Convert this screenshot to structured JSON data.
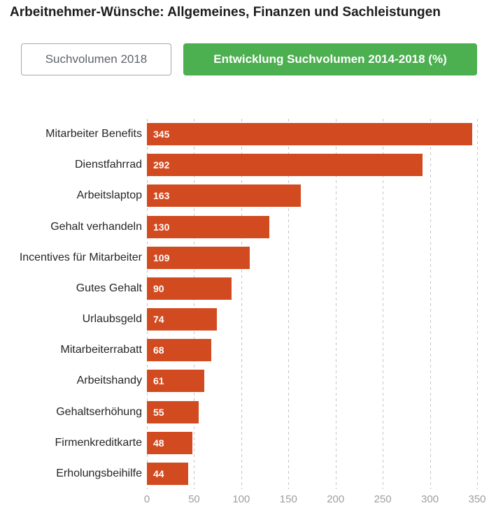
{
  "header": {
    "title": "Arbeitnehmer-Wünsche: Allgemeines, Finanzen und Sachleistungen"
  },
  "toolbar": {
    "volume_button_label": "Suchvolumen 2018",
    "growth_button_label": "Entwicklung Suchvolumen 2014-2018 (%)"
  },
  "colors": {
    "bar": "#d24b20",
    "active_button_bg": "#4caf50",
    "active_button_text": "#ffffff",
    "inactive_button_border": "#a6a6a6",
    "inactive_button_text": "#5f6368",
    "grid": "#c6c6c6",
    "axis_label": "#9e9e9e",
    "category_label": "#262626",
    "value_label": "#ffffff"
  },
  "chart_data": {
    "type": "bar",
    "orientation": "horizontal",
    "title": "Arbeitnehmer-Wünsche: Allgemeines, Finanzen und Sachleistungen",
    "categories": [
      "Mitarbeiter Benefits",
      "Dienstfahrrad",
      "Arbeitslaptop",
      "Gehalt verhandeln",
      "Incentives für Mitarbeiter",
      "Gutes Gehalt",
      "Urlaubsgeld",
      "Mitarbeiterrabatt",
      "Arbeitshandy",
      "Gehaltserhöhung",
      "Firmenkreditkarte",
      "Erholungsbeihilfe"
    ],
    "values": [
      345,
      292,
      163,
      130,
      109,
      90,
      74,
      68,
      61,
      55,
      48,
      44
    ],
    "xlabel": "",
    "ylabel": "",
    "xlim": [
      0,
      350
    ],
    "xticks": [
      0,
      50,
      100,
      150,
      200,
      250,
      300,
      350
    ],
    "grid": "dashed-vertical",
    "value_labels": "inside-start",
    "legend": "none"
  }
}
